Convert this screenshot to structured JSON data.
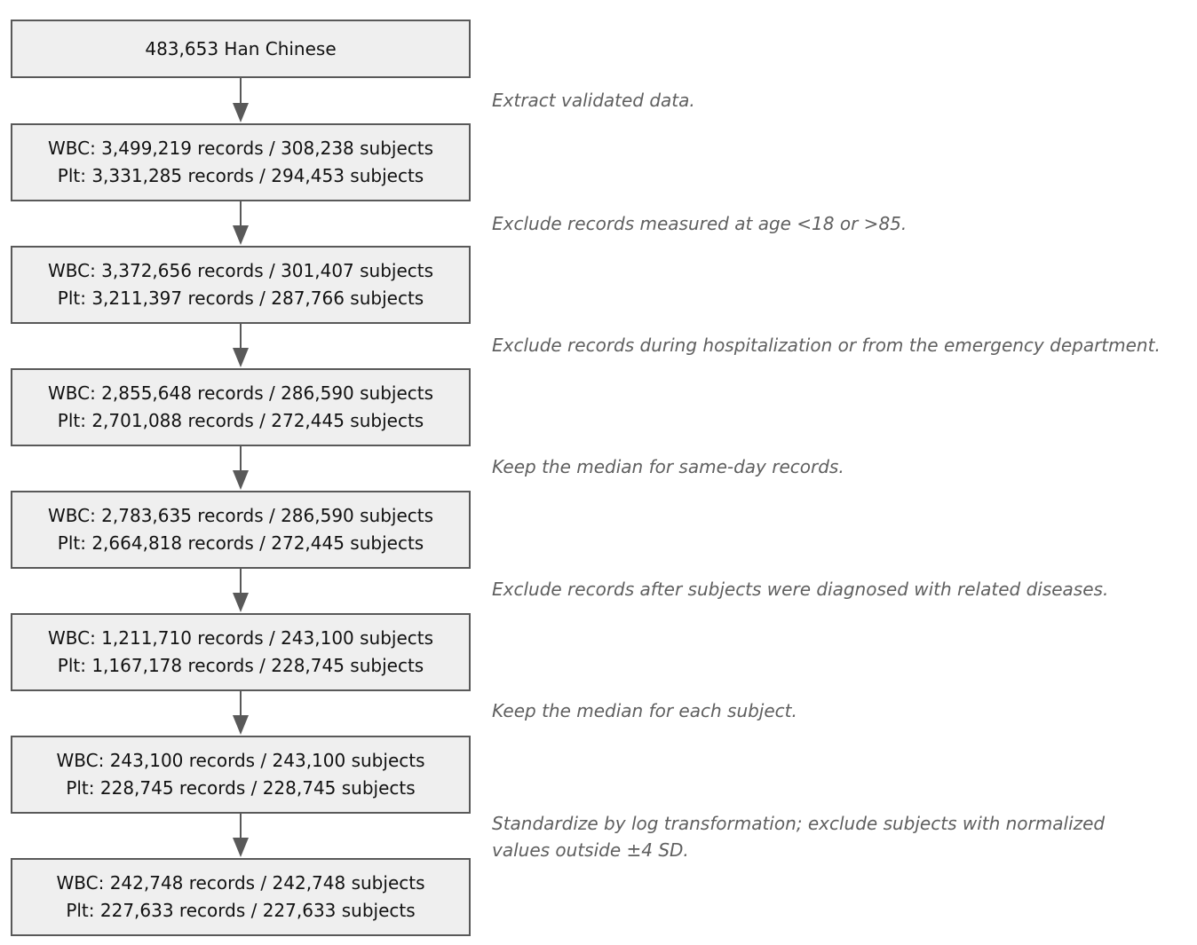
{
  "steps": [
    {
      "lines": [
        "483,653 Han Chinese"
      ]
    },
    {
      "lines": [
        "WBC: 3,499,219 records / 308,238 subjects",
        "Plt: 3,331,285 records / 294,453 subjects"
      ]
    },
    {
      "lines": [
        "WBC: 3,372,656 records / 301,407 subjects",
        "Plt: 3,211,397 records / 287,766 subjects"
      ]
    },
    {
      "lines": [
        "WBC: 2,855,648 records / 286,590 subjects",
        "Plt: 2,701,088 records / 272,445 subjects"
      ]
    },
    {
      "lines": [
        "WBC: 2,783,635 records / 286,590 subjects",
        "Plt: 2,664,818 records / 272,445 subjects"
      ]
    },
    {
      "lines": [
        "WBC: 1,211,710 records / 243,100 subjects",
        "Plt: 1,167,178 records / 228,745 subjects"
      ]
    },
    {
      "lines": [
        "WBC: 243,100 records / 243,100 subjects",
        "Plt: 228,745 records / 228,745 subjects"
      ]
    },
    {
      "lines": [
        "WBC: 242,748 records / 242,748 subjects",
        "Plt: 227,633 records / 227,633 subjects"
      ]
    }
  ],
  "transitions": [
    {
      "lines": [
        "Extract validated data."
      ]
    },
    {
      "lines": [
        "Exclude records measured at age <18 or >85."
      ]
    },
    {
      "lines": [
        "Exclude records during hospitalization or from the emergency department."
      ]
    },
    {
      "lines": [
        "Keep the median for same-day records."
      ]
    },
    {
      "lines": [
        "Exclude records after subjects were diagnosed with related diseases."
      ]
    },
    {
      "lines": [
        "Keep the median for each subject."
      ]
    },
    {
      "lines": [
        "Standardize by log transformation; exclude subjects with normalized",
        "values outside ±4 SD."
      ]
    }
  ],
  "colors": {
    "box_fill": "#efefef",
    "box_border": "#595959",
    "arrow": "#595959",
    "note_text": "#5f5f5f"
  }
}
